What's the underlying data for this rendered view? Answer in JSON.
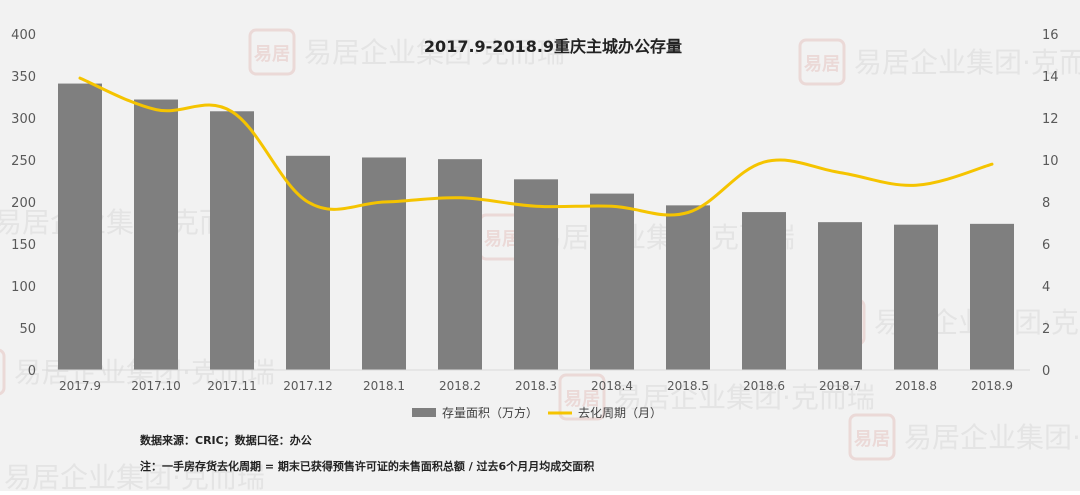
{
  "chart_data": {
    "type": "bar",
    "title": "2017.9-2018.9重庆主城办公存量",
    "categories": [
      "2017.9",
      "2017.10",
      "2017.11",
      "2017.12",
      "2018.1",
      "2018.2",
      "2018.3",
      "2018.4",
      "2018.5",
      "2018.6",
      "2018.7",
      "2018.8",
      "2018.9"
    ],
    "series": [
      {
        "name": "存量面积（万方）",
        "type": "bar",
        "axis": "left",
        "color": "#7f7f7f",
        "values": [
          341,
          322,
          308,
          255,
          253,
          251,
          227,
          210,
          196,
          188,
          176,
          173,
          174
        ]
      },
      {
        "name": "去化周期（月）",
        "type": "line",
        "axis": "right",
        "color": "#f5c400",
        "values": [
          13.9,
          12.4,
          12.3,
          8.0,
          8.0,
          8.2,
          7.8,
          7.8,
          7.5,
          9.9,
          9.4,
          8.8,
          9.8
        ]
      }
    ],
    "y_left": {
      "range": [
        0,
        400
      ],
      "ticks": [
        0,
        50,
        100,
        150,
        200,
        250,
        300,
        350,
        400
      ]
    },
    "y_right": {
      "range": [
        0,
        16
      ],
      "ticks": [
        0,
        2,
        4,
        6,
        8,
        10,
        12,
        14,
        16
      ]
    },
    "grid": false,
    "legend_position": "bottom"
  },
  "notes": {
    "source": "数据来源：CRIC；数据口径：办公",
    "formula": "注：一手房存货去化周期 = 期末已获得预售许可证的未售面积总额 / 过去6个月月均成交面积"
  },
  "watermark": {
    "text": "易居企业集团·克而瑞",
    "seal_text": "易居"
  }
}
